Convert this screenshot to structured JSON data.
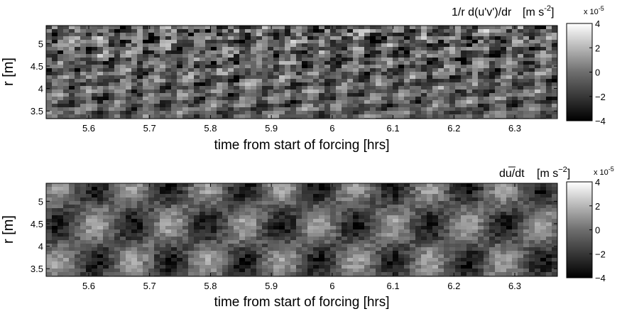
{
  "chart_data": [
    {
      "type": "heatmap",
      "title": "1/r d(u'v')/dr",
      "title_units": "[m s",
      "title_units_exp": "-2",
      "title_units_close": "]",
      "xlabel": "time from start of forcing [hrs]",
      "ylabel": "r [m]",
      "xlim": [
        5.53,
        6.37
      ],
      "ylim": [
        3.33,
        5.4
      ],
      "x_ticks": [
        "5.6",
        "5.7",
        "5.8",
        "5.9",
        "6",
        "6.1",
        "6.2",
        "6.3"
      ],
      "y_ticks": [
        "3.5",
        "4",
        "4.5",
        "5"
      ],
      "colorbar": {
        "ticks": [
          "4",
          "2",
          "0",
          "−2",
          "−4"
        ],
        "range": [
          -4,
          4
        ],
        "scale": "x 10",
        "scale_exp": "-5",
        "colormap": "gray"
      }
    },
    {
      "type": "heatmap",
      "title": "du/dt",
      "title_units": "[m s",
      "title_units_exp": "−2",
      "title_units_close": "]",
      "xlabel": "time from start of forcing [hrs]",
      "ylabel": "r [m]",
      "xlim": [
        5.53,
        6.37
      ],
      "ylim": [
        3.33,
        5.4
      ],
      "x_ticks": [
        "5.6",
        "5.7",
        "5.8",
        "5.9",
        "6",
        "6.1",
        "6.2",
        "6.3"
      ],
      "y_ticks": [
        "3.5",
        "4",
        "4.5",
        "5"
      ],
      "colorbar": {
        "ticks": [
          "4",
          "2",
          "0",
          "−2",
          "−4"
        ],
        "range": [
          -4,
          4
        ],
        "scale": "x 10",
        "scale_exp": "-5",
        "colormap": "gray"
      }
    }
  ]
}
